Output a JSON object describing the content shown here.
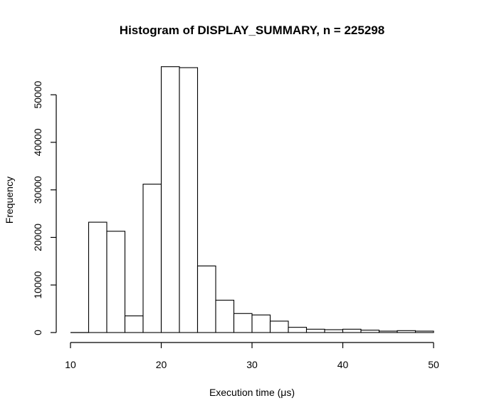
{
  "chart_data": {
    "type": "bar",
    "title": "Histogram of DISPLAY_SUMMARY, n = 225298",
    "xlabel": "Execution time (μs)",
    "ylabel": "Frequency",
    "xlim": [
      10,
      50
    ],
    "ylim": [
      0,
      56000
    ],
    "xticks": [
      10,
      20,
      30,
      40,
      50
    ],
    "yticks": [
      0,
      10000,
      20000,
      30000,
      40000,
      50000
    ],
    "bin_edges": [
      10,
      12,
      14,
      16,
      18,
      20,
      22,
      24,
      26,
      28,
      30,
      32,
      34,
      36,
      38,
      40,
      42,
      44,
      46,
      48,
      50
    ],
    "values": [
      0,
      23200,
      21300,
      3500,
      31200,
      55900,
      55700,
      14000,
      6800,
      4000,
      3700,
      2400,
      1100,
      700,
      600,
      700,
      500,
      300,
      400,
      300
    ],
    "grid": false,
    "legend": "none"
  },
  "colors": {
    "bar_fill": "#ffffff",
    "bar_stroke": "#000000",
    "background": "#ffffff"
  }
}
